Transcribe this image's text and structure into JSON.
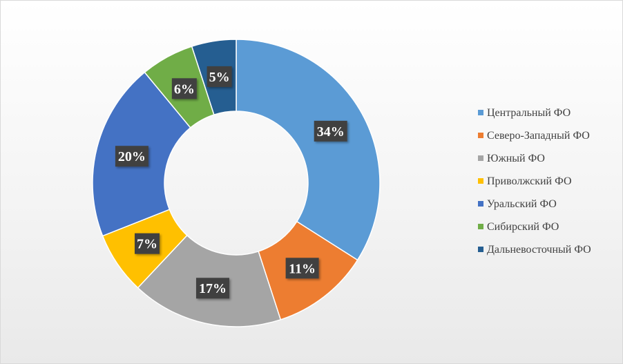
{
  "chart_data": {
    "type": "pie",
    "donut": true,
    "title": "",
    "categories": [
      "Центральный ФО",
      "Северо-Западный ФО",
      "Южный ФО",
      "Приволжский ФО",
      "Уральский ФО",
      "Сибирский ФО",
      "Дальневосточный ФО"
    ],
    "values": [
      34,
      11,
      17,
      7,
      20,
      6,
      5
    ],
    "labels": [
      "34%",
      "11%",
      "17%",
      "7%",
      "20%",
      "6%",
      "5%"
    ],
    "colors": [
      "#5b9bd5",
      "#ed7d31",
      "#a5a5a5",
      "#ffc000",
      "#4472c4",
      "#70ad47",
      "#255e91"
    ],
    "legend_position": "right",
    "label_style": {
      "fill": "#404040",
      "text_color": "#ffffff"
    }
  }
}
